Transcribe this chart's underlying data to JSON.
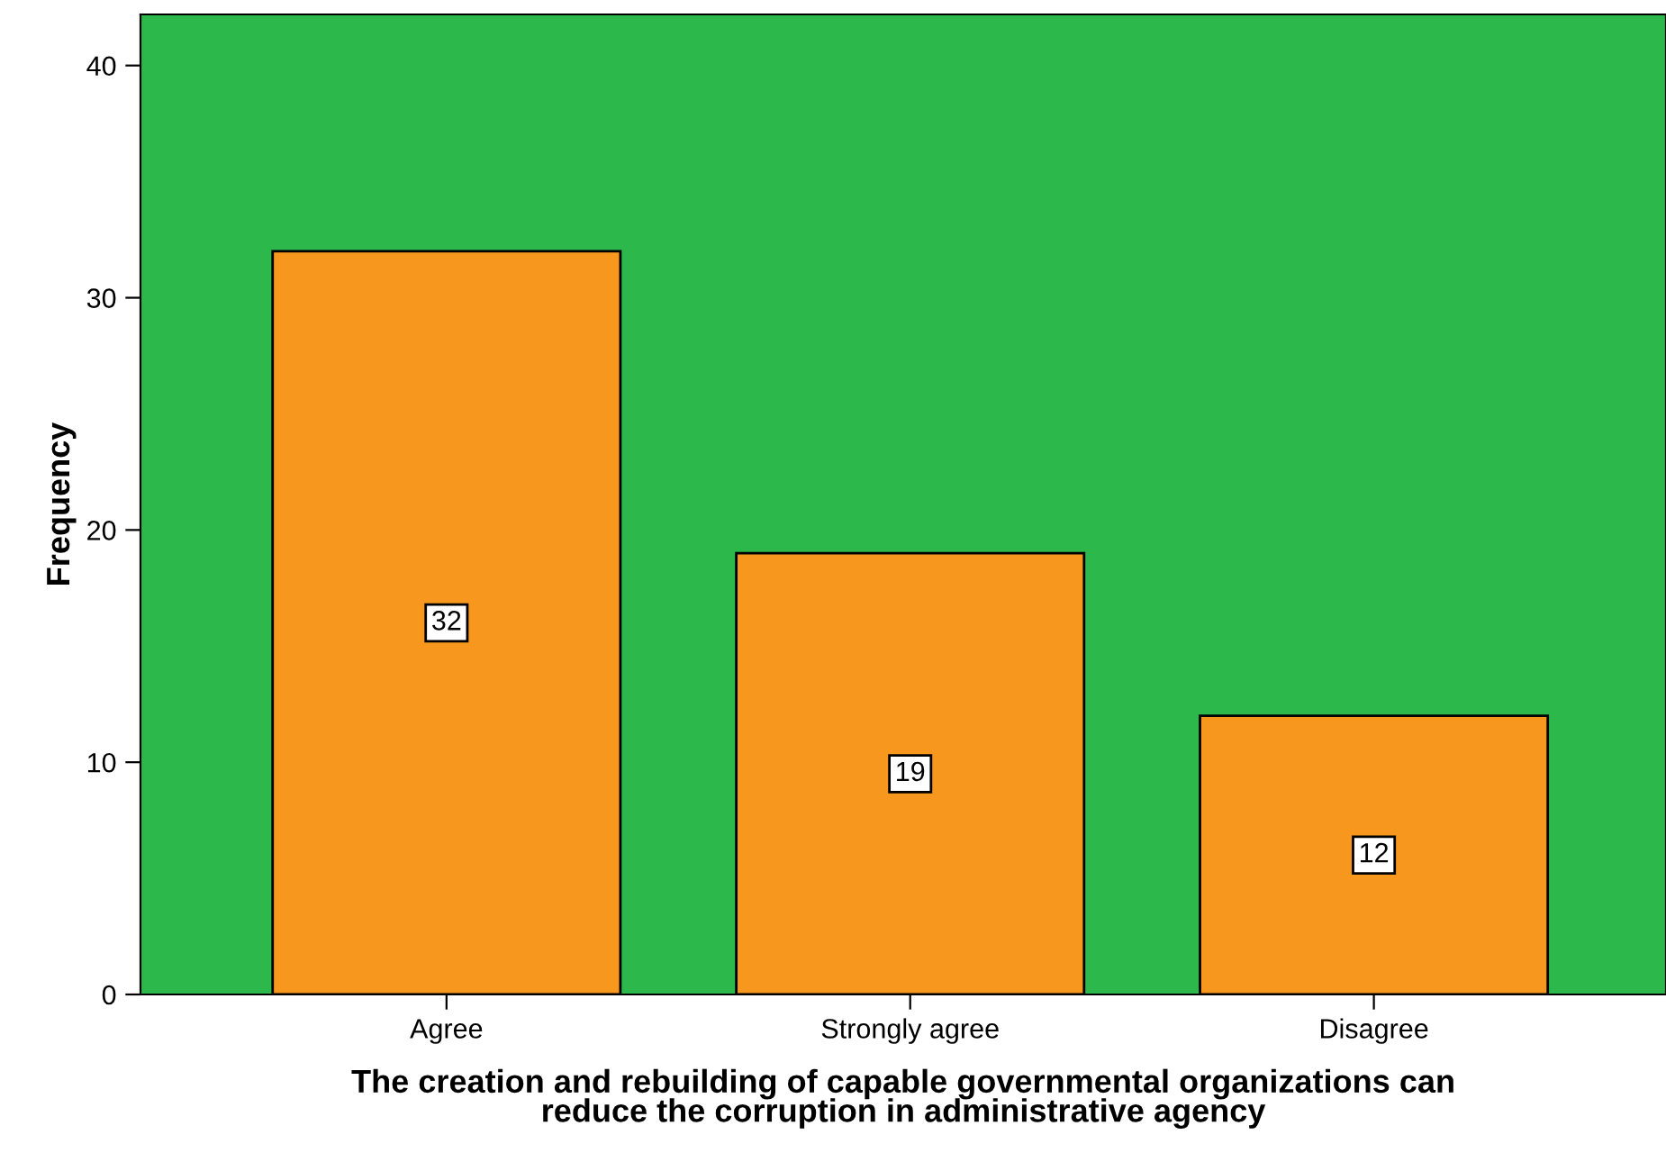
{
  "chart_data": {
    "type": "bar",
    "xlabel": "The creation and rebuilding of capable governmental organizations can\nreduce the corruption in administrative agency",
    "ylabel": "Frequency",
    "categories": [
      "Agree",
      "Strongly agree",
      "Disagree"
    ],
    "values": [
      32,
      19,
      12
    ],
    "color": "#f7971e",
    "ylim": [
      0,
      42.2
    ],
    "yticks": [
      0,
      10,
      20,
      30,
      40
    ],
    "grid": false,
    "data_labels": true
  }
}
